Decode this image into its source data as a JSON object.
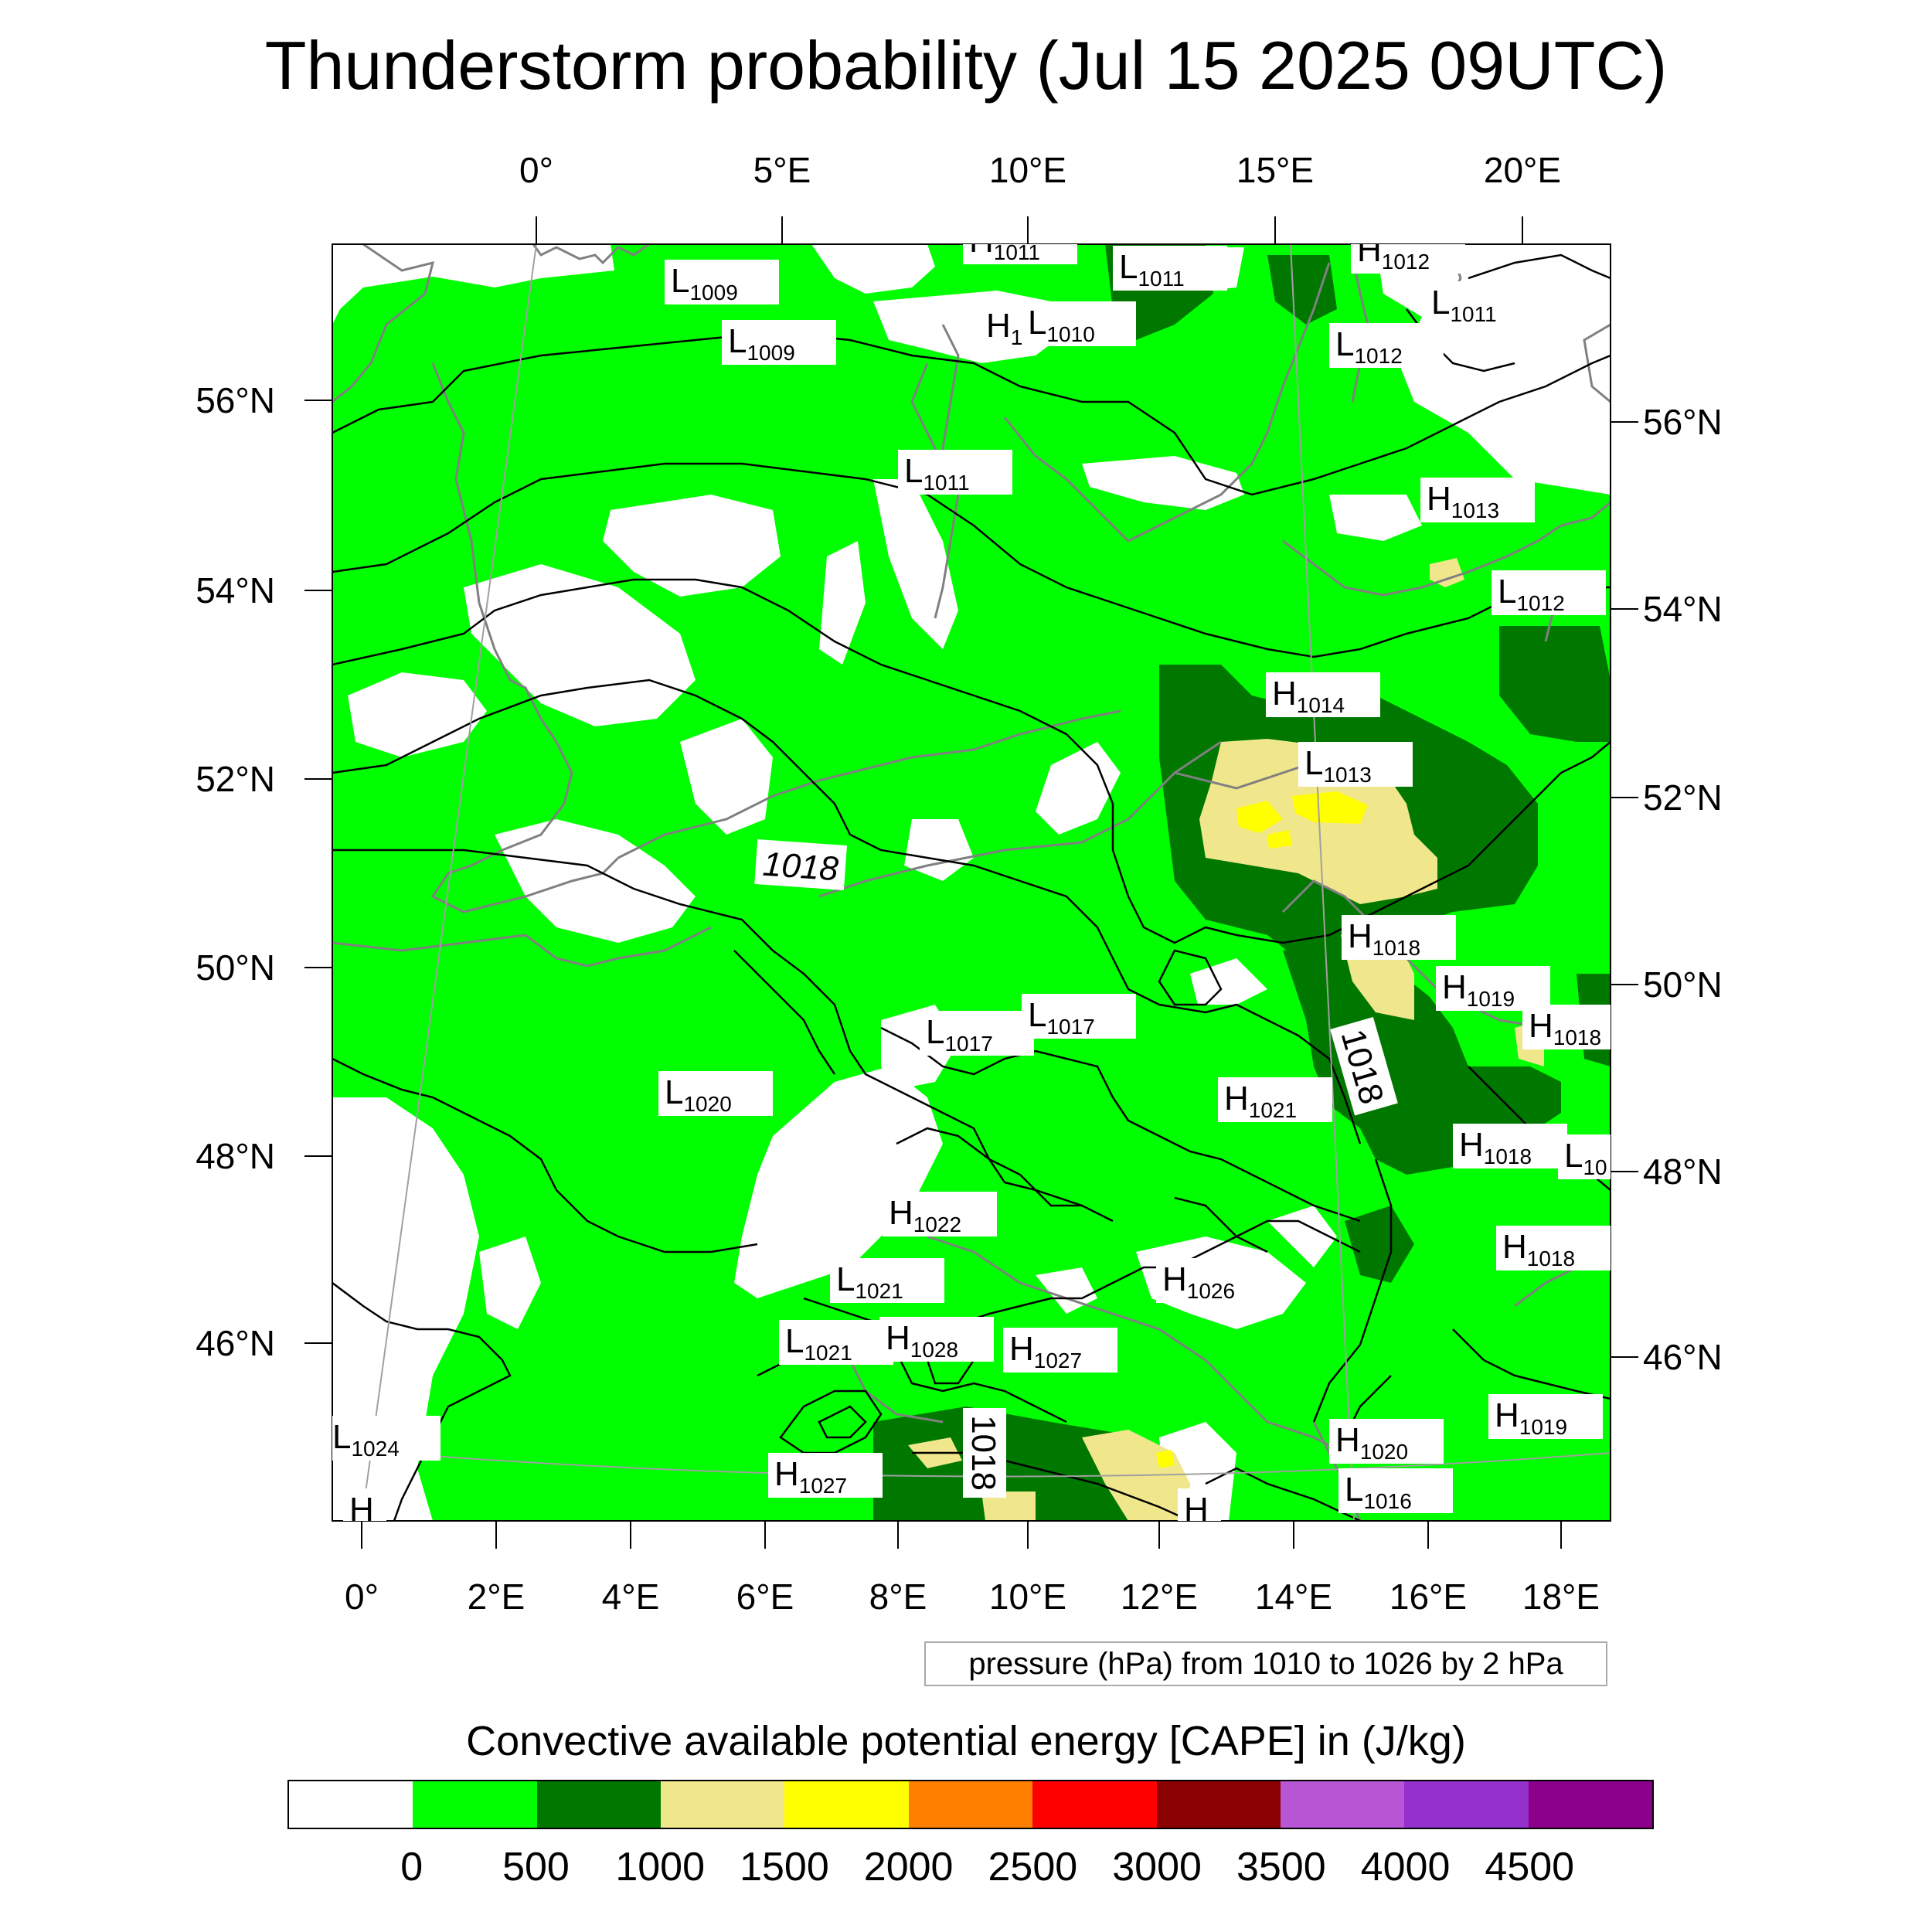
{
  "title": "Thunderstorm probability (Jul 15 2025 09UTC)",
  "map": {
    "top_lon_labels": [
      "0°",
      "5°E",
      "10°E",
      "15°E",
      "20°E"
    ],
    "bottom_lon_labels": [
      "0°",
      "2°E",
      "4°E",
      "6°E",
      "8°E",
      "10°E",
      "12°E",
      "14°E",
      "16°E",
      "18°E"
    ],
    "left_lat_labels": [
      "56°N",
      "54°N",
      "52°N",
      "50°N",
      "48°N",
      "46°N"
    ],
    "right_lat_labels": [
      "56°N",
      "54°N",
      "52°N",
      "50°N",
      "48°N",
      "46°N"
    ],
    "contour_labels": [
      "1018",
      "1018",
      "1018"
    ],
    "pressure_centers": [
      {
        "type": "H",
        "value": "1011"
      },
      {
        "type": "L",
        "value": "1011"
      },
      {
        "type": "H",
        "value": "1012"
      },
      {
        "type": "L",
        "value": "1009"
      },
      {
        "type": "L",
        "value": "1009"
      },
      {
        "type": "H",
        "value": "1"
      },
      {
        "type": "L",
        "value": "1010"
      },
      {
        "type": "L",
        "value": "1012"
      },
      {
        "type": "L",
        "value": "1011"
      },
      {
        "type": "L",
        "value": "1011"
      },
      {
        "type": "H",
        "value": "1013"
      },
      {
        "type": "L",
        "value": "1012"
      },
      {
        "type": "H",
        "value": "1014"
      },
      {
        "type": "L",
        "value": "1013"
      },
      {
        "type": "H",
        "value": "1018"
      },
      {
        "type": "H",
        "value": "1019"
      },
      {
        "type": "H",
        "value": "1018"
      },
      {
        "type": "L",
        "value": "1017"
      },
      {
        "type": "L",
        "value": "1017"
      },
      {
        "type": "L",
        "value": "1020"
      },
      {
        "type": "H",
        "value": "1021"
      },
      {
        "type": "H",
        "value": "1018"
      },
      {
        "type": "L",
        "value": "10"
      },
      {
        "type": "H",
        "value": "1022"
      },
      {
        "type": "H",
        "value": "1018"
      },
      {
        "type": "L",
        "value": "1021"
      },
      {
        "type": "H",
        "value": "1026"
      },
      {
        "type": "L",
        "value": "1021"
      },
      {
        "type": "H",
        "value": "1028"
      },
      {
        "type": "H",
        "value": "1027"
      },
      {
        "type": "H",
        "value": "1019"
      },
      {
        "type": "L",
        "value": "1024"
      },
      {
        "type": "H",
        "value": "1020"
      },
      {
        "type": "H",
        "value": "1027"
      },
      {
        "type": "L",
        "value": "1016"
      },
      {
        "type": "H",
        "value": ""
      },
      {
        "type": "H",
        "value": ""
      }
    ]
  },
  "contour_info": "pressure (hPa) from 1010 to 1026 by 2 hPa",
  "colorbar": {
    "title": "Convective available potential energy [CAPE] in (J/kg)",
    "colors": [
      "#ffffff",
      "#00ff00",
      "#007800",
      "#f0e68c",
      "#ffff00",
      "#ff8000",
      "#ff0000",
      "#8b0000",
      "#b856d6",
      "#9430cc",
      "#8b008b"
    ],
    "labels": [
      "0",
      "500",
      "1000",
      "1500",
      "2000",
      "2500",
      "3000",
      "3500",
      "4000",
      "4500"
    ]
  },
  "colors": {
    "cape_0_500": "#00ff00",
    "cape_500_1000": "#007800",
    "cape_1000_1500": "#f0e68c",
    "cape_1500_2000": "#ffff00",
    "coastline": "#808080",
    "isobar": "#000000"
  }
}
